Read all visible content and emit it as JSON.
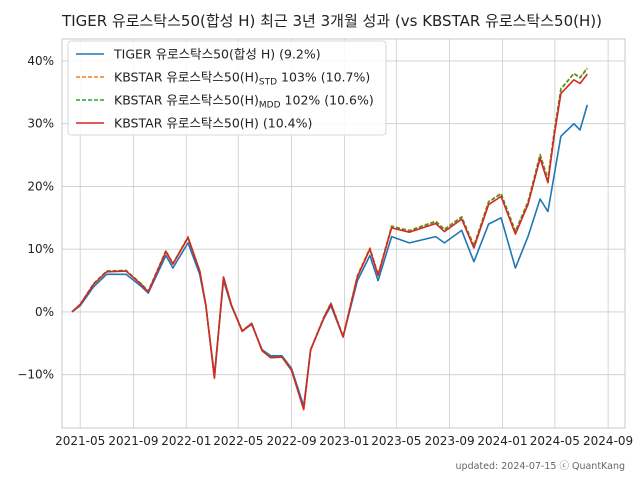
{
  "chart_data": {
    "type": "line",
    "title": "TIGER 유로스탁스50(합성 H) 최근 3년 3개월 성과 (vs KBSTAR 유로스탁스50(H))",
    "xlabel": "",
    "ylabel": "",
    "ylim": [
      -18.5,
      43.5
    ],
    "y_ticks": [
      -10,
      0,
      10,
      20,
      30,
      40
    ],
    "y_tick_labels": [
      "−10%",
      "0%",
      "10%",
      "20%",
      "30%",
      "40%"
    ],
    "x_ticks": [
      "2021-05",
      "2021-09",
      "2022-01",
      "2022-05",
      "2022-09",
      "2023-01",
      "2023-05",
      "2023-09",
      "2024-01",
      "2024-05",
      "2024-09"
    ],
    "xlim": [
      "2021-03-20",
      "2024-10-10"
    ],
    "grid": true,
    "legend_position": "top-left",
    "dates": [
      "2021-04-12",
      "2021-05-01",
      "2021-06-01",
      "2021-07-01",
      "2021-08-15",
      "2021-09-20",
      "2021-10-05",
      "2021-11-15",
      "2021-12-01",
      "2022-01-05",
      "2022-02-01",
      "2022-02-15",
      "2022-03-07",
      "2022-03-28",
      "2022-04-15",
      "2022-05-10",
      "2022-06-01",
      "2022-06-25",
      "2022-07-15",
      "2022-08-10",
      "2022-09-01",
      "2022-09-29",
      "2022-10-15",
      "2022-11-15",
      "2022-12-01",
      "2022-12-29",
      "2023-01-31",
      "2023-03-01",
      "2023-03-20",
      "2023-04-20",
      "2023-05-31",
      "2023-07-31",
      "2023-08-20",
      "2023-09-29",
      "2023-10-27",
      "2023-11-30",
      "2023-12-29",
      "2024-01-31",
      "2024-02-29",
      "2024-03-28",
      "2024-04-15",
      "2024-04-30",
      "2024-05-15",
      "2024-06-14",
      "2024-06-28",
      "2024-07-15"
    ],
    "series": [
      {
        "name": "TIGER 유로스탁스50(합성 H)  (9.2%)",
        "color": "#1f77b4",
        "dash": "",
        "values": [
          0,
          1,
          4,
          6,
          6,
          4,
          3,
          9,
          7,
          11,
          6,
          1,
          -10,
          5,
          1,
          -3,
          -2,
          -6,
          -7,
          -7,
          -9,
          -15,
          -6,
          -1,
          1,
          -4,
          5,
          9,
          5,
          12,
          11,
          12,
          11,
          13,
          8,
          14,
          15,
          7,
          12,
          18,
          16,
          22,
          28,
          30,
          29,
          33
        ]
      },
      {
        "name": "KBSTAR 유로스탁스50(H)",
        "name_sub": "STD",
        "name_tail": " 103%  (10.7%)",
        "color": "#ff7f0e",
        "dash": "4,2",
        "values": [
          0,
          1.2,
          4.5,
          6.5,
          6.6,
          4.4,
          3.3,
          9.8,
          7.7,
          12.0,
          6.6,
          1.2,
          -10.6,
          5.6,
          1.2,
          -3.0,
          -1.8,
          -6.2,
          -7.3,
          -7.2,
          -9.3,
          -15.6,
          -6.0,
          -0.8,
          1.4,
          -3.9,
          5.8,
          10.2,
          6.0,
          13.7,
          13.0,
          14.5,
          13.2,
          15.2,
          10.6,
          17.6,
          18.9,
          12.9,
          17.6,
          25.1,
          21.2,
          29.0,
          35.6,
          38.0,
          37.4,
          38.9
        ]
      },
      {
        "name": "KBSTAR 유로스탁스50(H)",
        "name_sub": "MDD",
        "name_tail": " 102%  (10.6%)",
        "color": "#2ca02c",
        "dash": "4,2",
        "values": [
          0,
          1.2,
          4.5,
          6.5,
          6.6,
          4.4,
          3.3,
          9.7,
          7.7,
          11.9,
          6.6,
          1.2,
          -10.5,
          5.6,
          1.2,
          -3.0,
          -1.8,
          -6.1,
          -7.2,
          -7.1,
          -9.2,
          -15.5,
          -6.0,
          -0.8,
          1.4,
          -3.9,
          5.7,
          10.1,
          5.9,
          13.6,
          12.9,
          14.4,
          13.1,
          15.1,
          10.5,
          17.5,
          18.8,
          12.8,
          17.5,
          25.0,
          21.1,
          28.9,
          35.5,
          38.0,
          37.3,
          38.8
        ]
      },
      {
        "name": "KBSTAR 유로스탁스50(H)  (10.4%)",
        "color": "#d62728",
        "dash": "",
        "values": [
          0,
          1.2,
          4.4,
          6.4,
          6.5,
          4.3,
          3.2,
          9.6,
          7.6,
          11.8,
          6.5,
          1.1,
          -10.5,
          5.5,
          1.1,
          -3.1,
          -1.9,
          -6.2,
          -7.3,
          -7.2,
          -9.3,
          -15.5,
          -6.1,
          -0.9,
          1.3,
          -4.0,
          5.6,
          10.0,
          5.8,
          13.4,
          12.7,
          14.1,
          12.8,
          14.8,
          10.2,
          17.1,
          18.4,
          12.4,
          17.1,
          24.5,
          20.6,
          28.3,
          34.8,
          37.0,
          36.4,
          37.9
        ]
      }
    ]
  },
  "footer": "updated: 2024-07-15 ⓒ QuantKang"
}
